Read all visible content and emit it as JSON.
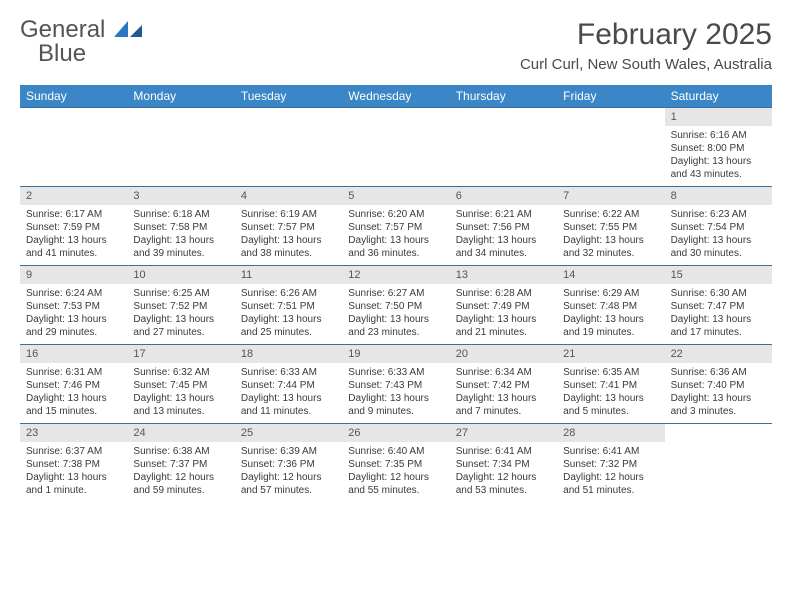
{
  "logo": {
    "text_general": "General",
    "text_blue": "Blue"
  },
  "header": {
    "month_title": "February 2025",
    "location": "Curl Curl, New South Wales, Australia"
  },
  "colors": {
    "header_bar": "#3b86c6",
    "header_text": "#ffffff",
    "day_number_bg": "#e6e6e6",
    "week_border": "#3b6fa0",
    "body_text": "#3a3a3a"
  },
  "weekdays": [
    "Sunday",
    "Monday",
    "Tuesday",
    "Wednesday",
    "Thursday",
    "Friday",
    "Saturday"
  ],
  "weeks": [
    [
      {
        "empty": true
      },
      {
        "empty": true
      },
      {
        "empty": true
      },
      {
        "empty": true
      },
      {
        "empty": true
      },
      {
        "empty": true
      },
      {
        "day": "1",
        "sunrise": "Sunrise: 6:16 AM",
        "sunset": "Sunset: 8:00 PM",
        "daylight1": "Daylight: 13 hours",
        "daylight2": "and 43 minutes."
      }
    ],
    [
      {
        "day": "2",
        "sunrise": "Sunrise: 6:17 AM",
        "sunset": "Sunset: 7:59 PM",
        "daylight1": "Daylight: 13 hours",
        "daylight2": "and 41 minutes."
      },
      {
        "day": "3",
        "sunrise": "Sunrise: 6:18 AM",
        "sunset": "Sunset: 7:58 PM",
        "daylight1": "Daylight: 13 hours",
        "daylight2": "and 39 minutes."
      },
      {
        "day": "4",
        "sunrise": "Sunrise: 6:19 AM",
        "sunset": "Sunset: 7:57 PM",
        "daylight1": "Daylight: 13 hours",
        "daylight2": "and 38 minutes."
      },
      {
        "day": "5",
        "sunrise": "Sunrise: 6:20 AM",
        "sunset": "Sunset: 7:57 PM",
        "daylight1": "Daylight: 13 hours",
        "daylight2": "and 36 minutes."
      },
      {
        "day": "6",
        "sunrise": "Sunrise: 6:21 AM",
        "sunset": "Sunset: 7:56 PM",
        "daylight1": "Daylight: 13 hours",
        "daylight2": "and 34 minutes."
      },
      {
        "day": "7",
        "sunrise": "Sunrise: 6:22 AM",
        "sunset": "Sunset: 7:55 PM",
        "daylight1": "Daylight: 13 hours",
        "daylight2": "and 32 minutes."
      },
      {
        "day": "8",
        "sunrise": "Sunrise: 6:23 AM",
        "sunset": "Sunset: 7:54 PM",
        "daylight1": "Daylight: 13 hours",
        "daylight2": "and 30 minutes."
      }
    ],
    [
      {
        "day": "9",
        "sunrise": "Sunrise: 6:24 AM",
        "sunset": "Sunset: 7:53 PM",
        "daylight1": "Daylight: 13 hours",
        "daylight2": "and 29 minutes."
      },
      {
        "day": "10",
        "sunrise": "Sunrise: 6:25 AM",
        "sunset": "Sunset: 7:52 PM",
        "daylight1": "Daylight: 13 hours",
        "daylight2": "and 27 minutes."
      },
      {
        "day": "11",
        "sunrise": "Sunrise: 6:26 AM",
        "sunset": "Sunset: 7:51 PM",
        "daylight1": "Daylight: 13 hours",
        "daylight2": "and 25 minutes."
      },
      {
        "day": "12",
        "sunrise": "Sunrise: 6:27 AM",
        "sunset": "Sunset: 7:50 PM",
        "daylight1": "Daylight: 13 hours",
        "daylight2": "and 23 minutes."
      },
      {
        "day": "13",
        "sunrise": "Sunrise: 6:28 AM",
        "sunset": "Sunset: 7:49 PM",
        "daylight1": "Daylight: 13 hours",
        "daylight2": "and 21 minutes."
      },
      {
        "day": "14",
        "sunrise": "Sunrise: 6:29 AM",
        "sunset": "Sunset: 7:48 PM",
        "daylight1": "Daylight: 13 hours",
        "daylight2": "and 19 minutes."
      },
      {
        "day": "15",
        "sunrise": "Sunrise: 6:30 AM",
        "sunset": "Sunset: 7:47 PM",
        "daylight1": "Daylight: 13 hours",
        "daylight2": "and 17 minutes."
      }
    ],
    [
      {
        "day": "16",
        "sunrise": "Sunrise: 6:31 AM",
        "sunset": "Sunset: 7:46 PM",
        "daylight1": "Daylight: 13 hours",
        "daylight2": "and 15 minutes."
      },
      {
        "day": "17",
        "sunrise": "Sunrise: 6:32 AM",
        "sunset": "Sunset: 7:45 PM",
        "daylight1": "Daylight: 13 hours",
        "daylight2": "and 13 minutes."
      },
      {
        "day": "18",
        "sunrise": "Sunrise: 6:33 AM",
        "sunset": "Sunset: 7:44 PM",
        "daylight1": "Daylight: 13 hours",
        "daylight2": "and 11 minutes."
      },
      {
        "day": "19",
        "sunrise": "Sunrise: 6:33 AM",
        "sunset": "Sunset: 7:43 PM",
        "daylight1": "Daylight: 13 hours",
        "daylight2": "and 9 minutes."
      },
      {
        "day": "20",
        "sunrise": "Sunrise: 6:34 AM",
        "sunset": "Sunset: 7:42 PM",
        "daylight1": "Daylight: 13 hours",
        "daylight2": "and 7 minutes."
      },
      {
        "day": "21",
        "sunrise": "Sunrise: 6:35 AM",
        "sunset": "Sunset: 7:41 PM",
        "daylight1": "Daylight: 13 hours",
        "daylight2": "and 5 minutes."
      },
      {
        "day": "22",
        "sunrise": "Sunrise: 6:36 AM",
        "sunset": "Sunset: 7:40 PM",
        "daylight1": "Daylight: 13 hours",
        "daylight2": "and 3 minutes."
      }
    ],
    [
      {
        "day": "23",
        "sunrise": "Sunrise: 6:37 AM",
        "sunset": "Sunset: 7:38 PM",
        "daylight1": "Daylight: 13 hours",
        "daylight2": "and 1 minute."
      },
      {
        "day": "24",
        "sunrise": "Sunrise: 6:38 AM",
        "sunset": "Sunset: 7:37 PM",
        "daylight1": "Daylight: 12 hours",
        "daylight2": "and 59 minutes."
      },
      {
        "day": "25",
        "sunrise": "Sunrise: 6:39 AM",
        "sunset": "Sunset: 7:36 PM",
        "daylight1": "Daylight: 12 hours",
        "daylight2": "and 57 minutes."
      },
      {
        "day": "26",
        "sunrise": "Sunrise: 6:40 AM",
        "sunset": "Sunset: 7:35 PM",
        "daylight1": "Daylight: 12 hours",
        "daylight2": "and 55 minutes."
      },
      {
        "day": "27",
        "sunrise": "Sunrise: 6:41 AM",
        "sunset": "Sunset: 7:34 PM",
        "daylight1": "Daylight: 12 hours",
        "daylight2": "and 53 minutes."
      },
      {
        "day": "28",
        "sunrise": "Sunrise: 6:41 AM",
        "sunset": "Sunset: 7:32 PM",
        "daylight1": "Daylight: 12 hours",
        "daylight2": "and 51 minutes."
      },
      {
        "empty": true
      }
    ]
  ]
}
